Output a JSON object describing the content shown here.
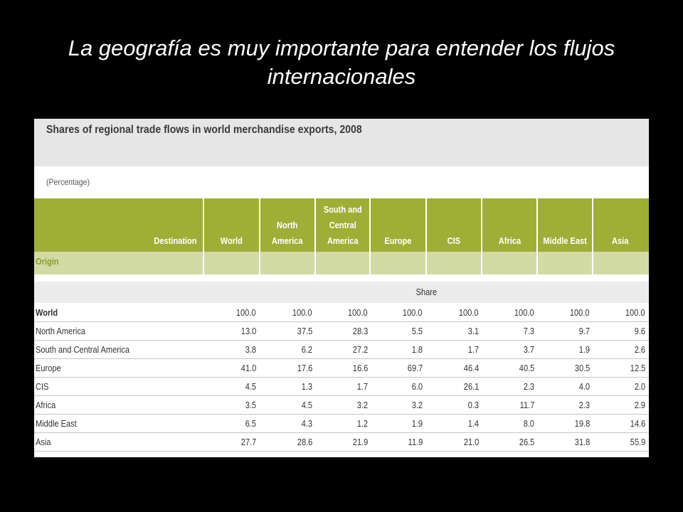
{
  "slide": {
    "title": "La geografía es muy importante para entender los flujos internacionales"
  },
  "table": {
    "title": "Shares of regional trade flows in world merchandise exports, 2008",
    "unit": "(Percentage)",
    "destination_label": "Destination",
    "origin_label": "Origin",
    "share_label": "Share",
    "columns": [
      "World",
      "North\nAmerica",
      "South and\nCentral\nAmerica",
      "Europe",
      "CIS",
      "Africa",
      "Middle East",
      "Asia"
    ],
    "rows": [
      {
        "label": "World",
        "values": [
          "100.0",
          "100.0",
          "100.0",
          "100.0",
          "100.0",
          "100.0",
          "100.0",
          "100.0"
        ]
      },
      {
        "label": "North America",
        "values": [
          "13.0",
          "37.5",
          "28.3",
          "5.5",
          "3.1",
          "7.3",
          "9.7",
          "9.6"
        ]
      },
      {
        "label": "South and Central America",
        "values": [
          "3.8",
          "6.2",
          "27.2",
          "1.8",
          "1.7",
          "3.7",
          "1.9",
          "2.6"
        ]
      },
      {
        "label": "Europe",
        "values": [
          "41.0",
          "17.6",
          "16.6",
          "69.7",
          "46.4",
          "40.5",
          "30.5",
          "12.5"
        ]
      },
      {
        "label": "CIS",
        "values": [
          "4.5",
          "1.3",
          "1.7",
          "6.0",
          "26.1",
          "2.3",
          "4.0",
          "2.0"
        ]
      },
      {
        "label": "Africa",
        "values": [
          "3.5",
          "4.5",
          "3.2",
          "3.2",
          "0.3",
          "11.7",
          "2.3",
          "2.9"
        ]
      },
      {
        "label": "Middle East",
        "values": [
          "6.5",
          "4.3",
          "1.2",
          "1.9",
          "1.4",
          "8.0",
          "19.8",
          "14.6"
        ]
      },
      {
        "label": "Asia",
        "values": [
          "27.7",
          "28.6",
          "21.9",
          "11.9",
          "21.0",
          "26.5",
          "31.8",
          "55.9"
        ]
      }
    ]
  }
}
